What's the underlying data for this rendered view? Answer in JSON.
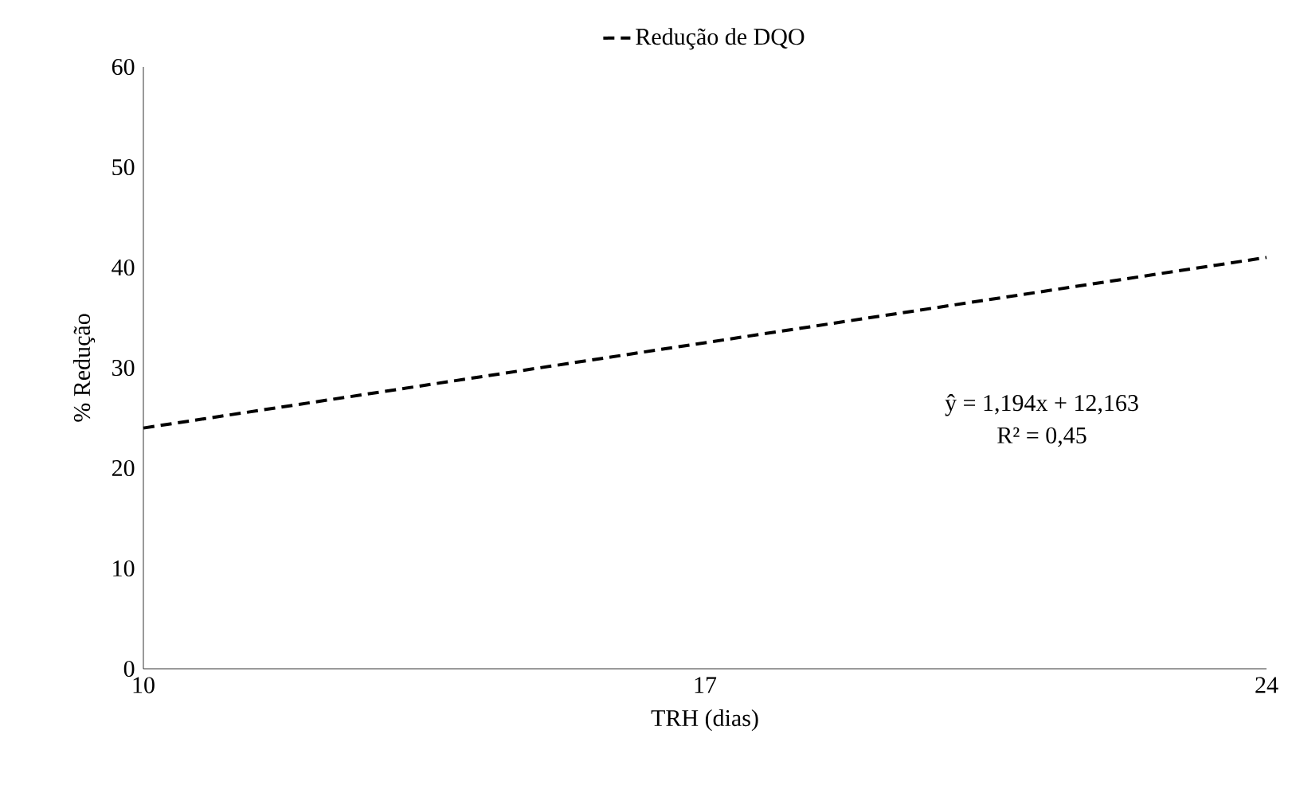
{
  "chart_data": {
    "type": "line",
    "xlabel": "TRH (dias)",
    "ylabel": "% Redução",
    "x": [
      10,
      24
    ],
    "series": [
      {
        "name": "Redução de DQO",
        "color": "#000000",
        "values": [
          24,
          41
        ],
        "line_style": "dashed"
      }
    ],
    "xlim": [
      10,
      24
    ],
    "xticks": [
      10,
      17,
      24
    ],
    "ylim": [
      0,
      60
    ],
    "yticks": [
      0,
      10,
      20,
      30,
      40,
      50,
      60
    ],
    "annotations": [
      "ŷ = 1,194x + 12,163",
      "R² = 0,45"
    ],
    "legend": "top",
    "grid": false,
    "marker": "none"
  }
}
